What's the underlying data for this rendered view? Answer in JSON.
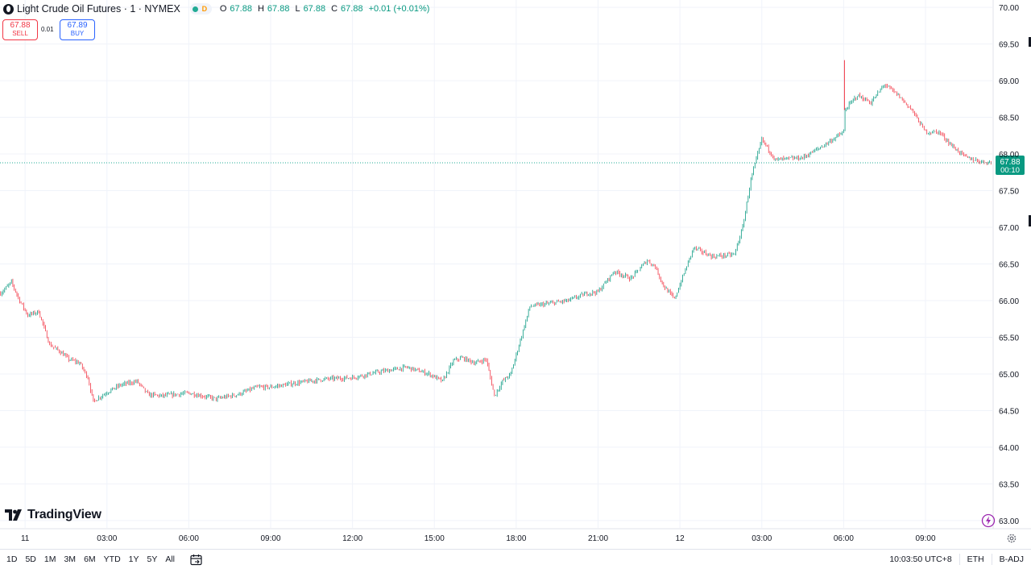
{
  "header": {
    "symbol_title": "Light Crude Oil Futures · 1 · NYMEX",
    "badge_d": "D",
    "ohlc": {
      "o_label": "O",
      "o_value": "67.88",
      "h_label": "H",
      "h_value": "67.88",
      "l_label": "L",
      "l_value": "67.88",
      "c_label": "C",
      "c_value": "67.88",
      "change": "+0.01 (+0.01%)"
    }
  },
  "trade": {
    "sell_price": "67.88",
    "sell_label": "SELL",
    "spread": "0.01",
    "buy_price": "67.89",
    "buy_label": "BUY"
  },
  "branding": {
    "logo_text": "TradingView"
  },
  "bottom_bar": {
    "ranges": [
      "1D",
      "5D",
      "1M",
      "3M",
      "6M",
      "YTD",
      "1Y",
      "5Y",
      "All"
    ],
    "clock": "10:03:50 UTC+8",
    "session": "ETH",
    "adjust": "B-ADJ"
  },
  "icons": {
    "calendar": "calendar-icon",
    "gear": "gear-icon",
    "flash": "lightning-icon"
  },
  "colors": {
    "up": "#089981",
    "down": "#f23645",
    "last_price_line": "#22ab94",
    "text": "#131722",
    "grid": "#f0f3fa"
  },
  "chart_data": {
    "type": "line",
    "style": "candlestick",
    "timeframe": "1",
    "ylim": [
      62.9,
      70.1
    ],
    "y_ticks": [
      "63.00",
      "63.50",
      "64.00",
      "64.50",
      "65.00",
      "65.50",
      "66.00",
      "66.50",
      "67.00",
      "67.50",
      "68.00",
      "68.50",
      "69.00",
      "69.50",
      "70.00"
    ],
    "x_ticks": [
      "11",
      "03:00",
      "06:00",
      "09:00",
      "12:00",
      "15:00",
      "18:00",
      "21:00",
      "12",
      "03:00",
      "06:00",
      "09:00"
    ],
    "x_tick_hours": [
      0,
      3,
      6,
      9,
      12,
      15,
      18,
      21,
      24,
      27,
      30,
      33
    ],
    "x_range_hours": [
      -0.92,
      35.45
    ],
    "last_price": "67.88",
    "countdown": "00:10",
    "grid": true,
    "x": [
      -0.9,
      -0.5,
      -0.2,
      0.1,
      0.5,
      0.9,
      1.3,
      1.6,
      2.0,
      2.3,
      2.5,
      2.6,
      3.0,
      3.5,
      4.1,
      4.5,
      5.0,
      6.0,
      7.0,
      7.8,
      8.5,
      9.0,
      10.0,
      11.0,
      12.0,
      13.0,
      14.0,
      14.8,
      15.3,
      15.7,
      16.0,
      16.5,
      16.9,
      17.2,
      17.5,
      17.8,
      18.5,
      19.0,
      19.9,
      20.6,
      21.0,
      21.6,
      22.2,
      22.8,
      23.1,
      23.4,
      23.8,
      24.5,
      25.2,
      26.0,
      26.3,
      26.6,
      27.0,
      27.5,
      28.5,
      29.2,
      30.0,
      30.05,
      30.5,
      31.0,
      31.5,
      32.0,
      32.5,
      33.0,
      33.5,
      34.0,
      34.5,
      35.0,
      35.4
    ],
    "y": [
      66.1,
      66.25,
      66.0,
      65.8,
      65.85,
      65.4,
      65.3,
      65.2,
      65.15,
      64.95,
      64.62,
      64.65,
      64.75,
      64.85,
      64.9,
      64.72,
      64.7,
      64.74,
      64.66,
      64.72,
      64.82,
      64.82,
      64.88,
      64.93,
      64.95,
      65.03,
      65.09,
      65.0,
      64.9,
      65.18,
      65.22,
      65.15,
      65.2,
      64.7,
      64.9,
      65.0,
      65.92,
      65.95,
      66.0,
      66.1,
      66.12,
      66.4,
      66.3,
      66.55,
      66.46,
      66.2,
      66.02,
      66.72,
      66.6,
      66.63,
      67.0,
      67.65,
      68.2,
      67.92,
      67.95,
      68.1,
      68.3,
      68.6,
      68.8,
      68.7,
      68.95,
      68.8,
      68.6,
      68.3,
      68.3,
      68.1,
      67.95,
      67.9,
      67.88
    ]
  }
}
